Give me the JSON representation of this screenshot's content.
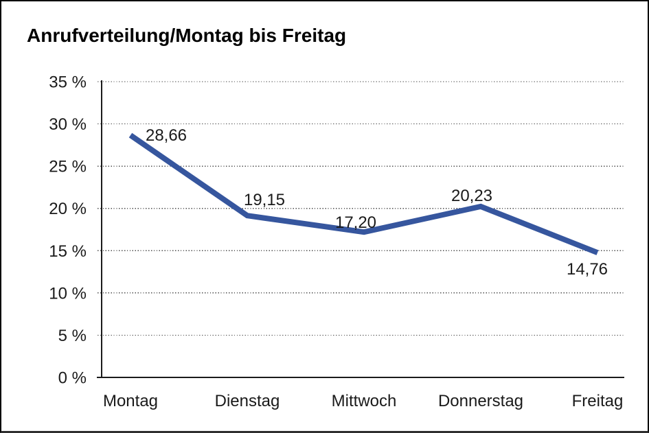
{
  "title": "Anrufverteilung/Montag bis Freitag",
  "chart_data": {
    "type": "line",
    "title": "Anrufverteilung/Montag bis Freitag",
    "categories": [
      "Montag",
      "Dienstag",
      "Mittwoch",
      "Donnerstag",
      "Freitag"
    ],
    "values": [
      28.66,
      19.15,
      17.2,
      20.23,
      14.76
    ],
    "data_labels": [
      "28,66",
      "19,15",
      "17,20",
      "20,23",
      "14,76"
    ],
    "unit": "%",
    "xlabel": "",
    "ylabel": "",
    "ylim": [
      0,
      35
    ],
    "ytick_step": 5,
    "y_tick_labels": [
      "0 %",
      "5 %",
      "10 %",
      "15 %",
      "20 %",
      "25 %",
      "30 %",
      "35 %"
    ],
    "grid": "horizontal-dotted",
    "legend": "none",
    "line_color": "#36569E",
    "axis_color": "#1a1a1a",
    "grid_color": "#4d4d4d",
    "text_color": "#1a1a1a"
  }
}
